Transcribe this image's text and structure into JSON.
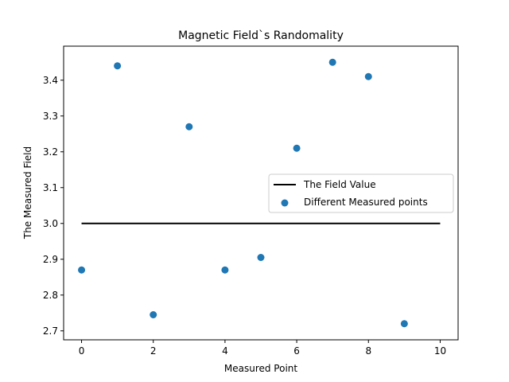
{
  "chart_data": {
    "type": "scatter",
    "title": "Magnetic Field`s Randomality",
    "xlabel": "Measured Point",
    "ylabel": "The Measured Field",
    "xlim": [
      -0.5,
      10.5
    ],
    "ylim": [
      2.675,
      3.495
    ],
    "xticks": [
      0,
      2,
      4,
      6,
      8,
      10
    ],
    "xtick_labels": [
      "0",
      "2",
      "4",
      "6",
      "8",
      "10"
    ],
    "yticks": [
      2.7,
      2.8,
      2.9,
      3.0,
      3.1,
      3.2,
      3.3,
      3.4
    ],
    "ytick_labels": [
      "2.7",
      "2.8",
      "2.9",
      "3.0",
      "3.1",
      "3.2",
      "3.3",
      "3.4"
    ],
    "grid": false,
    "legend_position": "center-right",
    "series": [
      {
        "name": "The Field Value",
        "kind": "line",
        "color": "#000000",
        "x": [
          0,
          10
        ],
        "y": [
          3.0,
          3.0
        ]
      },
      {
        "name": "Different Measured points",
        "kind": "scatter",
        "color": "#1f77b4",
        "x": [
          0,
          1,
          2,
          3,
          4,
          5,
          6,
          7,
          8,
          9
        ],
        "y": [
          2.87,
          3.44,
          2.745,
          3.27,
          2.87,
          2.905,
          3.21,
          3.45,
          3.41,
          2.72
        ]
      }
    ]
  }
}
